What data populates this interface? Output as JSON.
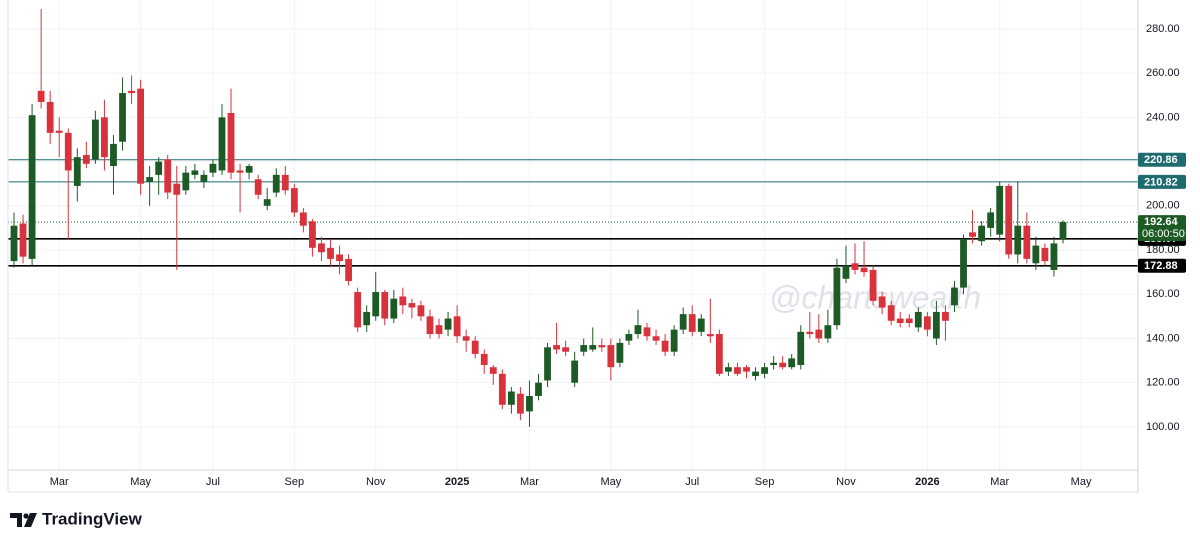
{
  "chart_data": {
    "type": "candlestick",
    "watermark": "@chartswealth",
    "brand": "TradingView",
    "up_color": "#1e5a26",
    "down_color": "#d8323c",
    "categories": [
      null,
      null,
      null,
      null,
      null,
      "Mar",
      null,
      null,
      null,
      null,
      null,
      null,
      null,
      null,
      "May",
      null,
      null,
      null,
      null,
      null,
      null,
      null,
      "Jul",
      null,
      null,
      null,
      null,
      null,
      null,
      null,
      null,
      "Sep",
      null,
      null,
      null,
      null,
      null,
      null,
      null,
      null,
      "Nov",
      null,
      null,
      null,
      null,
      null,
      null,
      null,
      null,
      "2025",
      null,
      null,
      null,
      null,
      null,
      null,
      null,
      "Mar",
      null,
      null,
      null,
      null,
      null,
      null,
      null,
      null,
      "May",
      null,
      null,
      null,
      null,
      null,
      null,
      null,
      null,
      "Jul",
      null,
      null,
      null,
      null,
      null,
      null,
      null,
      "Sep",
      null,
      null,
      null,
      null,
      null,
      null,
      null,
      null,
      "Nov",
      null,
      null,
      null,
      null,
      null,
      null,
      null,
      null,
      "2026",
      null,
      null,
      null,
      null,
      null,
      null,
      null,
      "Mar",
      null,
      null,
      null,
      null,
      null,
      null,
      null,
      null,
      "May",
      null
    ],
    "open": [
      175,
      192,
      176,
      252,
      247,
      234,
      233,
      209,
      223,
      221,
      240,
      218,
      229,
      252,
      253,
      211,
      214,
      221,
      210,
      207,
      214,
      211,
      215,
      216,
      242,
      216,
      215,
      212,
      200,
      206,
      214,
      208,
      197,
      193,
      183,
      181,
      178,
      176,
      161,
      146,
      150,
      161,
      149,
      159,
      156,
      155,
      150,
      146,
      144,
      150,
      141,
      139,
      133,
      127,
      124,
      110,
      115,
      107,
      114,
      121,
      137,
      136,
      120,
      134,
      135,
      137,
      137,
      129,
      139,
      142,
      145,
      141,
      139,
      134,
      144,
      151,
      143,
      142,
      142,
      125,
      127,
      127,
      123,
      124,
      128,
      129,
      127,
      128,
      143,
      144,
      140,
      146,
      167,
      174,
      172,
      171,
      159,
      155,
      149,
      149,
      145,
      150,
      140,
      152,
      155,
      163,
      188,
      184,
      190,
      187,
      209,
      178,
      191,
      174,
      181,
      171,
      185,
      null,
      null,
      null
    ],
    "high": [
      197,
      196,
      246,
      289,
      252,
      240,
      235,
      226,
      229,
      243,
      248,
      232,
      258,
      259,
      257,
      218,
      222,
      223,
      218,
      218,
      219,
      216,
      221,
      246,
      253,
      219,
      219,
      214,
      208,
      217,
      218,
      210,
      199,
      194,
      186,
      185,
      182,
      178,
      163,
      155,
      170,
      162,
      162,
      163,
      158,
      157,
      153,
      149,
      152,
      155,
      144,
      141,
      135,
      128,
      126,
      118,
      118,
      121,
      124,
      138,
      147,
      139,
      134,
      140,
      145,
      140,
      140,
      140,
      144,
      153,
      147,
      144,
      142,
      146,
      154,
      155,
      151,
      158,
      144,
      129,
      129,
      128,
      127,
      129,
      132,
      132,
      133,
      146,
      152,
      151,
      153,
      176,
      182,
      183,
      184,
      173,
      161,
      157,
      152,
      151,
      154,
      152,
      157,
      155,
      166,
      187,
      198,
      193,
      199,
      211,
      210,
      211,
      197,
      186,
      183,
      186,
      193.5,
      null,
      null,
      null
    ],
    "low": [
      172,
      174,
      173,
      244,
      228,
      222,
      185,
      202,
      217,
      219,
      216,
      205,
      225,
      246,
      205,
      200,
      205,
      203,
      171,
      205,
      212,
      208,
      213,
      214,
      212,
      197,
      212,
      203,
      198,
      204,
      205,
      195,
      188,
      177,
      175,
      173,
      169,
      164,
      143,
      143,
      148,
      146,
      147,
      151,
      149,
      148,
      140,
      140,
      141,
      138,
      134,
      131,
      124,
      119,
      108,
      106,
      103,
      100,
      112,
      118,
      133,
      132,
      118,
      132,
      134,
      134,
      121,
      127,
      137,
      140,
      139,
      137,
      132,
      132,
      142,
      141,
      141,
      138,
      123,
      123,
      123,
      122,
      121,
      122,
      126,
      126,
      126,
      126,
      140,
      138,
      138,
      144,
      165,
      169,
      168,
      155,
      151,
      146,
      145,
      145,
      143,
      141,
      137,
      139,
      152,
      160,
      183,
      182,
      186,
      184,
      176,
      174,
      174,
      171,
      173,
      168,
      183,
      null,
      null,
      null
    ],
    "close": [
      191,
      177,
      241,
      247,
      233,
      233,
      216,
      222,
      219,
      239,
      222,
      228,
      251,
      251,
      210,
      213,
      220,
      206,
      205,
      215,
      216,
      214,
      219,
      240,
      215,
      215,
      218,
      205,
      203,
      214,
      207,
      197,
      191,
      181,
      179,
      176,
      175,
      166,
      145,
      152,
      161,
      149,
      158,
      155,
      154,
      150,
      142,
      142,
      149,
      141,
      139,
      133,
      128,
      124,
      110,
      116,
      106,
      114,
      120,
      136,
      135,
      134,
      130,
      137,
      137,
      136,
      127,
      138,
      142,
      146,
      141,
      139,
      134,
      144,
      151,
      143,
      149,
      141,
      124,
      127,
      124,
      125,
      125,
      127,
      129,
      127,
      131,
      143,
      142,
      140,
      146,
      172,
      173,
      171,
      170,
      157,
      154,
      148,
      147,
      147,
      152,
      144,
      152,
      148,
      163,
      185,
      186,
      191,
      197,
      209,
      178,
      191,
      176,
      182,
      175,
      183,
      192.64,
      null,
      null,
      null
    ],
    "ylim": [
      80.5,
      293.1
    ],
    "yticks": [
      {
        "value": 100,
        "label": "100.00"
      },
      {
        "value": 120,
        "label": "120.00"
      },
      {
        "value": 140,
        "label": "140.00"
      },
      {
        "value": 160,
        "label": "160.00"
      },
      {
        "value": 180,
        "label": "180.00"
      },
      {
        "value": 200,
        "label": "200.00"
      },
      {
        "value": 220,
        "label": "220.00"
      },
      {
        "value": 240,
        "label": "240.00"
      },
      {
        "value": 260,
        "label": "260.00"
      },
      {
        "value": 280,
        "label": "280.00"
      }
    ],
    "grid": true,
    "levels": [
      {
        "value": 220.86,
        "color": "#1f6b70"
      },
      {
        "value": 210.82,
        "color": "#1f6b70"
      },
      {
        "value": 185.07,
        "color": "#000000"
      },
      {
        "value": 172.88,
        "color": "#000000"
      }
    ],
    "last_price": {
      "value": 192.64,
      "countdown": "06:00:50",
      "color": "#1e5a26"
    }
  }
}
